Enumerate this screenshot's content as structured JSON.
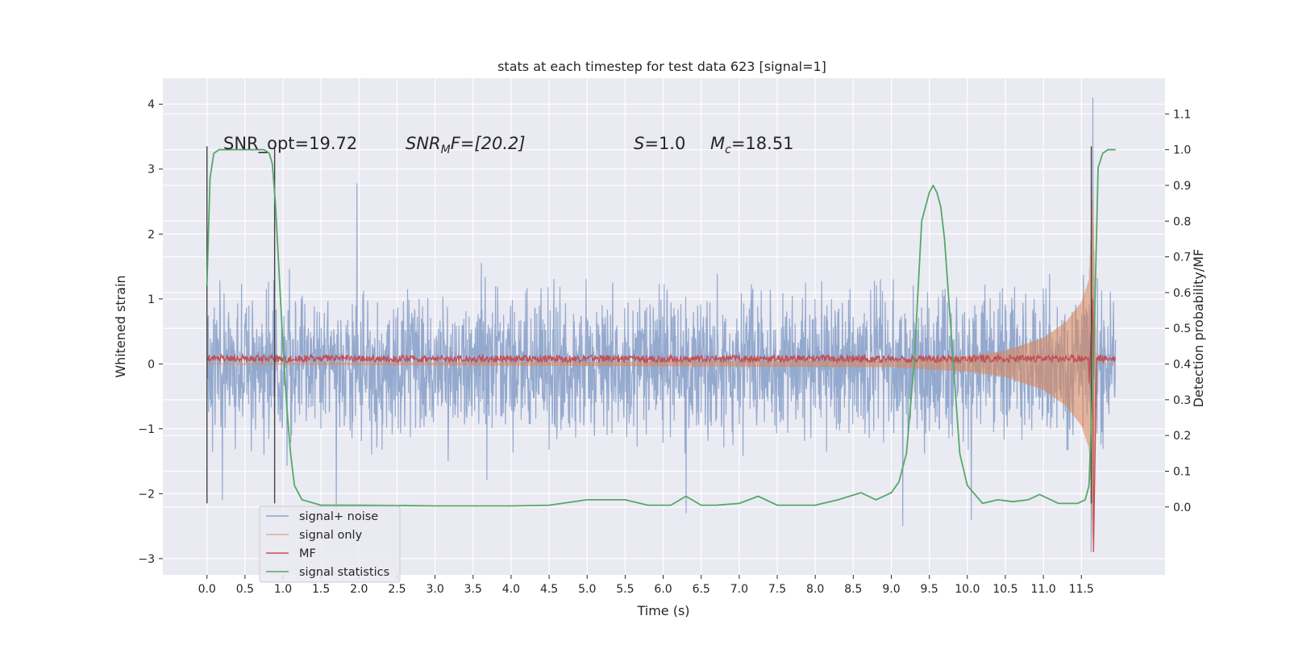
{
  "chart_data": {
    "type": "line",
    "title": "stats at each timestep for test data 623 [signal=1]",
    "xlabel": "Time (s)",
    "ylabel_left": "Whitened strain",
    "ylabel_right": "Detection probability/MF",
    "xlim": [
      -0.58,
      12.6
    ],
    "ylim_left": [
      -3.25,
      4.4
    ],
    "ylim_right": [
      -0.19,
      1.2
    ],
    "x_ticks": [
      "0.0",
      "0.5",
      "1.0",
      "1.5",
      "2.0",
      "2.5",
      "3.0",
      "3.5",
      "4.0",
      "4.5",
      "5.0",
      "5.5",
      "6.0",
      "6.5",
      "7.0",
      "7.5",
      "8.0",
      "8.5",
      "9.0",
      "9.5",
      "10.0",
      "10.5",
      "11.0",
      "11.5"
    ],
    "y_left_ticks": [
      "4",
      "3",
      "2",
      "1",
      "0",
      "−1",
      "−2",
      "−3"
    ],
    "y_right_ticks": [
      "1.1",
      "1.0",
      "0.9",
      "0.8",
      "0.7",
      "0.6",
      "0.5",
      "0.4",
      "0.3",
      "0.2",
      "0.1",
      "0.0"
    ],
    "grid": true,
    "legend_position": "lower-left",
    "annotations": {
      "snr_opt": "SNR_opt=19.72",
      "snr_mf_sym": "SNR",
      "snr_mf_sub": "M",
      "snr_mf_rest": "F=[20.2]",
      "s_sym": "S",
      "s_rest": "=1.0",
      "mc_sym": "M",
      "mc_sub": "c",
      "mc_rest": "=18.51"
    },
    "vertical_markers_x": [
      0.0,
      0.89,
      11.63
    ],
    "series": [
      {
        "name": "signal+ noise",
        "color": "#4c72b0",
        "axis": "left",
        "x_range": [
          0.0,
          11.95
        ],
        "noise_envelope": [
          -2.3,
          2.6
        ],
        "peaks": [
          [
            1.97,
            2.78
          ],
          [
            9.15,
            -2.5
          ],
          [
            11.65,
            4.1
          ],
          [
            11.63,
            -2.9
          ],
          [
            0.2,
            -2.1
          ],
          [
            1.7,
            -2.3
          ],
          [
            6.3,
            -2.3
          ],
          [
            10.05,
            -2.4
          ]
        ]
      },
      {
        "name": "signal only",
        "color": "#dd8452",
        "axis": "left",
        "x_range": [
          0.0,
          11.95
        ],
        "amplitude_points": [
          [
            0.0,
            0.01
          ],
          [
            9.0,
            0.05
          ],
          [
            10.0,
            0.12
          ],
          [
            10.5,
            0.2
          ],
          [
            11.0,
            0.4
          ],
          [
            11.3,
            0.65
          ],
          [
            11.5,
            0.95
          ],
          [
            11.6,
            1.3
          ],
          [
            11.65,
            2.8
          ],
          [
            11.7,
            0.0
          ],
          [
            11.95,
            0.0
          ]
        ]
      },
      {
        "name": "MF",
        "color": "#c44e52",
        "axis": "left",
        "x_range": [
          0.0,
          11.95
        ],
        "baseline": 0.08,
        "spike": [
          [
            11.6,
            -0.3
          ],
          [
            11.65,
            1.0
          ],
          [
            11.66,
            -2.9
          ],
          [
            11.7,
            0.1
          ]
        ]
      },
      {
        "name": "signal statistics",
        "color": "#55a868",
        "axis": "right",
        "x": [
          0.0,
          0.04,
          0.09,
          0.16,
          0.25,
          0.4,
          0.6,
          0.75,
          0.82,
          0.86,
          0.9,
          0.95,
          1.0,
          1.05,
          1.1,
          1.15,
          1.25,
          1.5,
          2.0,
          3.0,
          4.0,
          4.5,
          5.0,
          5.2,
          5.5,
          5.8,
          6.1,
          6.3,
          6.5,
          6.7,
          7.0,
          7.25,
          7.5,
          8.0,
          8.3,
          8.6,
          8.8,
          9.0,
          9.1,
          9.2,
          9.3,
          9.4,
          9.5,
          9.55,
          9.6,
          9.65,
          9.7,
          9.8,
          9.9,
          10.0,
          10.2,
          10.4,
          10.6,
          10.8,
          10.95,
          11.2,
          11.45,
          11.55,
          11.6,
          11.66,
          11.72,
          11.78,
          11.85,
          11.95
        ],
        "y": [
          0.62,
          0.92,
          0.99,
          1.0,
          1.0,
          1.0,
          1.0,
          1.0,
          0.99,
          0.96,
          0.85,
          0.65,
          0.45,
          0.28,
          0.15,
          0.06,
          0.02,
          0.005,
          0.005,
          0.003,
          0.003,
          0.005,
          0.02,
          0.02,
          0.02,
          0.005,
          0.005,
          0.03,
          0.005,
          0.005,
          0.01,
          0.03,
          0.005,
          0.005,
          0.02,
          0.04,
          0.02,
          0.04,
          0.07,
          0.15,
          0.4,
          0.8,
          0.88,
          0.9,
          0.88,
          0.84,
          0.75,
          0.45,
          0.15,
          0.06,
          0.01,
          0.02,
          0.015,
          0.02,
          0.035,
          0.01,
          0.01,
          0.02,
          0.06,
          0.4,
          0.95,
          0.99,
          1.0,
          1.0
        ]
      }
    ]
  }
}
